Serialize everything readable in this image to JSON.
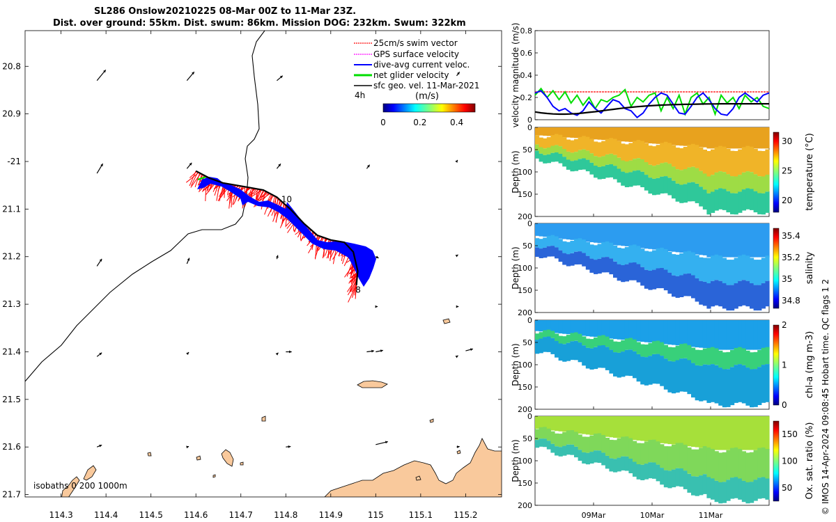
{
  "title": {
    "line1": "SL286 Onslow20210225 08-Mar 00Z to 11-Mar 23Z.",
    "line2": "Dist. over ground: 55km. Dist. swum: 86km. Mission DOG: 232km. Swum: 322km"
  },
  "credit": "© IMOS 14-Apr-2024 09:08:45 Hobart time. QC flags 1  2",
  "colors": {
    "swim": "#ff0000",
    "gps": "#ff00ff",
    "current": "#0000ff",
    "net": "#00dd00",
    "geo": "#000000",
    "land": "#f9c99c"
  },
  "chart_data": [
    {
      "type": "map",
      "legend": {
        "entries": [
          "25cm/s swim vector",
          "GPS surface velocity",
          "dive-avg current veloc.",
          "net glider velocity",
          "sfc geo. vel. 11-Mar-2021"
        ],
        "interval_label": "4h",
        "colorbar_label": "(m/s)",
        "colorbar_ticks": [
          "0",
          "0.2",
          "0.4"
        ],
        "colorbar_range": [
          0,
          0.5
        ]
      },
      "xlim": [
        114.22,
        115.28
      ],
      "ylim": [
        -21.705,
        -20.725
      ],
      "xticks": [
        114.3,
        114.4,
        114.5,
        114.6,
        114.7,
        114.8,
        114.9,
        115,
        115.1,
        115.2
      ],
      "xtick_labels": [
        "114.3",
        "114.4",
        "114.5",
        "114.6",
        "114.7",
        "114.8",
        "114.9",
        "115",
        "115.1",
        "115.2"
      ],
      "yticks": [
        -20.8,
        -20.9,
        -21,
        -21.1,
        -21.2,
        -21.3,
        -21.4,
        -21.5,
        -21.6,
        -21.7
      ],
      "ytick_labels": [
        "20.8",
        "20.9",
        "-21",
        "21.1",
        "21.2",
        "21.3",
        "21.4",
        "21.5",
        "21.6",
        "21.7"
      ],
      "isobath_label": "isobaths 0   200  1000m",
      "track_labels": [
        {
          "text": "10",
          "lon": 114.79,
          "lat": -21.08
        },
        {
          "text": "8",
          "lon": 114.955,
          "lat": -21.27
        }
      ],
      "track": [
        [
          114.6,
          -21.02
        ],
        [
          114.63,
          -21.035
        ],
        [
          114.66,
          -21.045
        ],
        [
          114.69,
          -21.05
        ],
        [
          114.72,
          -21.055
        ],
        [
          114.75,
          -21.06
        ],
        [
          114.78,
          -21.075
        ],
        [
          114.81,
          -21.1
        ],
        [
          114.84,
          -21.13
        ],
        [
          114.87,
          -21.155
        ],
        [
          114.9,
          -21.165
        ],
        [
          114.93,
          -21.17
        ],
        [
          114.95,
          -21.19
        ],
        [
          114.96,
          -21.23
        ],
        [
          114.957,
          -21.26
        ]
      ],
      "geo_vectors": [
        {
          "lon": 114.38,
          "lat": -20.83,
          "u": 0.018,
          "v": 0.022
        },
        {
          "lon": 114.58,
          "lat": -20.83,
          "u": 0.015,
          "v": 0.018
        },
        {
          "lon": 114.78,
          "lat": -20.83,
          "u": 0.012,
          "v": 0.01
        },
        {
          "lon": 115.18,
          "lat": -20.82,
          "u": 0.006,
          "v": 0.008
        },
        {
          "lon": 114.38,
          "lat": -21.025,
          "u": 0.012,
          "v": 0.02
        },
        {
          "lon": 114.58,
          "lat": -21.015,
          "u": 0.01,
          "v": 0.012
        },
        {
          "lon": 114.78,
          "lat": -21.015,
          "u": 0.008,
          "v": 0.01
        },
        {
          "lon": 114.98,
          "lat": -21.015,
          "u": 0.006,
          "v": 0.008
        },
        {
          "lon": 115.18,
          "lat": -21.0,
          "u": 0.002,
          "v": 0.003
        },
        {
          "lon": 114.38,
          "lat": -21.22,
          "u": 0.01,
          "v": 0.015
        },
        {
          "lon": 114.58,
          "lat": -21.215,
          "u": 0.005,
          "v": 0.012
        },
        {
          "lon": 114.78,
          "lat": -21.205,
          "u": 0.002,
          "v": 0.008
        },
        {
          "lon": 115.0,
          "lat": -21.2,
          "u": 0.006,
          "v": -0.003
        },
        {
          "lon": 115.18,
          "lat": -21.198,
          "u": 0.003,
          "v": 0.002
        },
        {
          "lon": 115.0,
          "lat": -21.305,
          "u": 0.004,
          "v": 0.0
        },
        {
          "lon": 115.18,
          "lat": -21.305,
          "u": 0.004,
          "v": 0.0
        },
        {
          "lon": 114.38,
          "lat": -21.41,
          "u": 0.01,
          "v": 0.008
        },
        {
          "lon": 114.58,
          "lat": -21.405,
          "u": 0.004,
          "v": 0.004
        },
        {
          "lon": 114.78,
          "lat": -21.405,
          "u": 0.003,
          "v": 0.003
        },
        {
          "lon": 114.8,
          "lat": -21.4,
          "u": 0.012,
          "v": 0.0
        },
        {
          "lon": 114.98,
          "lat": -21.4,
          "u": 0.015,
          "v": 0.002
        },
        {
          "lon": 115.0,
          "lat": -21.4,
          "u": 0.015,
          "v": 0.003
        },
        {
          "lon": 115.18,
          "lat": -21.41,
          "u": 0.003,
          "v": 0.002
        },
        {
          "lon": 115.2,
          "lat": -21.398,
          "u": 0.015,
          "v": 0.004
        },
        {
          "lon": 114.38,
          "lat": -21.6,
          "u": 0.01,
          "v": 0.004
        },
        {
          "lon": 114.58,
          "lat": -21.6,
          "u": 0.004,
          "v": 0.001
        },
        {
          "lon": 114.8,
          "lat": -21.6,
          "u": 0.01,
          "v": 0.001
        },
        {
          "lon": 115.0,
          "lat": -21.595,
          "u": 0.025,
          "v": 0.006
        },
        {
          "lon": 115.18,
          "lat": -21.6,
          "u": 0.006,
          "v": 0.001
        }
      ]
    },
    {
      "type": "line",
      "ylabel": "velocity magnitude (m/s)",
      "ylim": [
        0,
        0.8
      ],
      "yticks": [
        "0",
        "0.2",
        "0.4",
        "0.6",
        "0.8"
      ],
      "series": [
        {
          "color": "#ff0000",
          "values": [
            0.25,
            0.25,
            0.25,
            0.25,
            0.25,
            0.25,
            0.25,
            0.25,
            0.25,
            0.25,
            0.25,
            0.25,
            0.25,
            0.25,
            0.25,
            0.25,
            0.25,
            0.25,
            0.25,
            0.25,
            0.25,
            0.25,
            0.25,
            0.25,
            0.25,
            0.25,
            0.25,
            0.25,
            0.25,
            0.25,
            0.25,
            0.25,
            0.25,
            0.25,
            0.25,
            0.25,
            0.25,
            0.25,
            0.25,
            0.25
          ]
        },
        {
          "color": "#00dd00",
          "values": [
            0.22,
            0.28,
            0.2,
            0.26,
            0.18,
            0.25,
            0.15,
            0.22,
            0.13,
            0.2,
            0.1,
            0.18,
            0.16,
            0.2,
            0.22,
            0.27,
            0.12,
            0.2,
            0.16,
            0.22,
            0.24,
            0.08,
            0.2,
            0.1,
            0.22,
            0.05,
            0.2,
            0.24,
            0.14,
            0.2,
            0.05,
            0.22,
            0.15,
            0.2,
            0.1,
            0.22,
            0.16,
            0.2,
            0.12,
            0.1
          ]
        },
        {
          "color": "#0000ff",
          "values": [
            0.24,
            0.26,
            0.2,
            0.12,
            0.08,
            0.1,
            0.06,
            0.04,
            0.08,
            0.16,
            0.1,
            0.06,
            0.12,
            0.18,
            0.16,
            0.1,
            0.08,
            0.02,
            0.06,
            0.14,
            0.2,
            0.24,
            0.22,
            0.14,
            0.06,
            0.05,
            0.12,
            0.2,
            0.24,
            0.18,
            0.1,
            0.05,
            0.04,
            0.1,
            0.2,
            0.24,
            0.2,
            0.16,
            0.22,
            0.24
          ]
        },
        {
          "color": "#000000",
          "values": [
            0.07,
            0.062,
            0.056,
            0.052,
            0.05,
            0.05,
            0.052,
            0.055,
            0.06,
            0.066,
            0.072,
            0.079,
            0.086,
            0.093,
            0.1,
            0.106,
            0.112,
            0.117,
            0.121,
            0.125,
            0.128,
            0.131,
            0.133,
            0.135,
            0.137,
            0.138,
            0.139,
            0.14,
            0.141,
            0.142,
            0.142,
            0.143,
            0.143,
            0.143,
            0.143,
            0.143,
            0.143,
            0.143,
            0.143,
            0.143
          ]
        }
      ]
    },
    {
      "type": "heatmap",
      "ylabel": "Depth (m)",
      "clabel": "temperature (°C)",
      "ylim": [
        0,
        200
      ],
      "yticks": [
        "0",
        "50",
        "100",
        "150",
        "200"
      ],
      "cticks": [
        "20",
        "25",
        "30"
      ],
      "crange": [
        18,
        31.5
      ]
    },
    {
      "type": "heatmap",
      "ylabel": "Depth (m)",
      "clabel": "salinity",
      "ylim": [
        0,
        200
      ],
      "yticks": [
        "0",
        "50",
        "100",
        "150",
        "200"
      ],
      "cticks": [
        "34.8",
        "35",
        "35.2",
        "35.4"
      ],
      "crange": [
        34.73,
        35.47
      ]
    },
    {
      "type": "heatmap",
      "ylabel": "Depth (m)",
      "clabel": "chl-a (mg m-3)",
      "ylim": [
        0,
        200
      ],
      "yticks": [
        "0",
        "50",
        "100",
        "150",
        "200"
      ],
      "cticks": [
        "0",
        "1",
        "2"
      ],
      "crange": [
        0,
        2
      ]
    },
    {
      "type": "heatmap",
      "ylabel": "Depth (m)",
      "clabel": "Ox. sat. ratio (%)",
      "ylim": [
        0,
        200
      ],
      "yticks": [
        "0",
        "50",
        "100",
        "150",
        "200"
      ],
      "cticks": [
        "50",
        "100",
        "150"
      ],
      "crange": [
        25,
        175
      ],
      "xtick_labels": [
        "09Mar",
        "10Mar",
        "11Mar"
      ]
    }
  ]
}
